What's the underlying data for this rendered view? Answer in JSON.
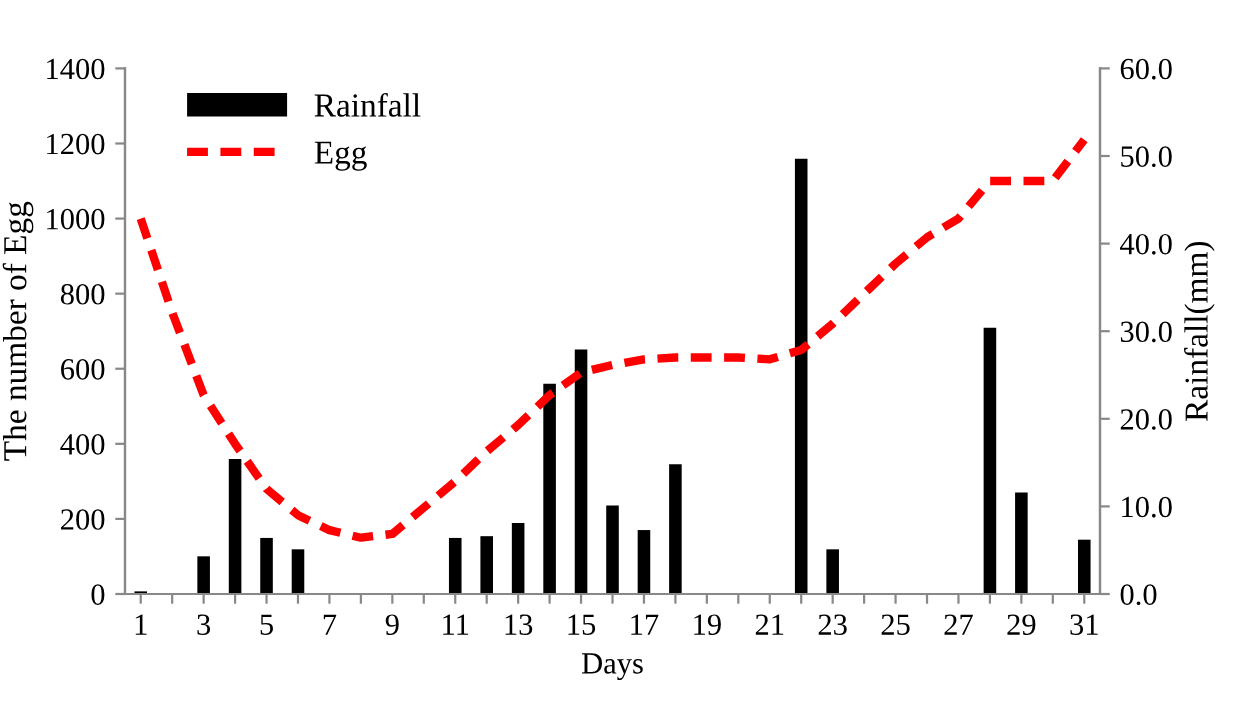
{
  "chart_data": {
    "type": "bar",
    "xlabel": "Days",
    "ylabel": "The number of Egg",
    "y2label": "Rainfall(mm)",
    "x": [
      1,
      2,
      3,
      4,
      5,
      6,
      7,
      8,
      9,
      10,
      11,
      12,
      13,
      14,
      15,
      16,
      17,
      18,
      19,
      20,
      21,
      22,
      23,
      24,
      25,
      26,
      27,
      28,
      29,
      30,
      31
    ],
    "xlim": [
      0.5,
      31.5
    ],
    "xticks": [
      1,
      {
        "value": 2,
        "label": null
      },
      3,
      {
        "value": 4,
        "label": null
      },
      5,
      {
        "value": 6,
        "label": null
      },
      7,
      {
        "value": 8,
        "label": null
      },
      9,
      {
        "value": 10,
        "label": null
      },
      11,
      {
        "value": 12,
        "label": null
      },
      13,
      {
        "value": 14,
        "label": null
      },
      15,
      {
        "value": 16,
        "label": null
      },
      17,
      {
        "value": 18,
        "label": null
      },
      19,
      {
        "value": 20,
        "label": null
      },
      21,
      {
        "value": 22,
        "label": null
      },
      23,
      {
        "value": 24,
        "label": null
      },
      25,
      {
        "value": 26,
        "label": null
      },
      27,
      {
        "value": 28,
        "label": null
      },
      29,
      {
        "value": 30,
        "label": null
      },
      31
    ],
    "ylim": [
      0,
      1400
    ],
    "yticks": [
      0,
      200,
      400,
      600,
      800,
      1000,
      1200,
      1400
    ],
    "y2lim": [
      0,
      60
    ],
    "y2ticks": [
      {
        "value": 0,
        "label": "0.0"
      },
      {
        "value": 10,
        "label": "10.0"
      },
      {
        "value": 20,
        "label": "20.0"
      },
      {
        "value": 30,
        "label": "30.0"
      },
      {
        "value": 40,
        "label": "40.0"
      },
      {
        "value": 50,
        "label": "50.0"
      },
      {
        "value": 60,
        "label": "60.0"
      }
    ],
    "grid": false,
    "legend": "top left",
    "series": [
      {
        "name": "Rainfall",
        "axis": "y2",
        "color": "#000000",
        "values": [
          0.3,
          0,
          4.3,
          15.4,
          6.4,
          5.1,
          0,
          0,
          0,
          0,
          6.4,
          6.6,
          8.1,
          24,
          27.9,
          10.1,
          7.3,
          14.8,
          0,
          0,
          0,
          49.7,
          5.1,
          0,
          0,
          0,
          0,
          30.4,
          11.6,
          0,
          6.2
        ]
      },
      {
        "name": "Egg",
        "type": "line",
        "color": "#ff0000",
        "line_style": "dashed",
        "values": [
          1000,
          750,
          530,
          400,
          280,
          210,
          170,
          150,
          160,
          230,
          300,
          380,
          450,
          530,
          590,
          610,
          625,
          630,
          630,
          630,
          625,
          650,
          720,
          800,
          880,
          950,
          1000,
          1100,
          1100,
          1100,
          1210
        ]
      }
    ]
  }
}
